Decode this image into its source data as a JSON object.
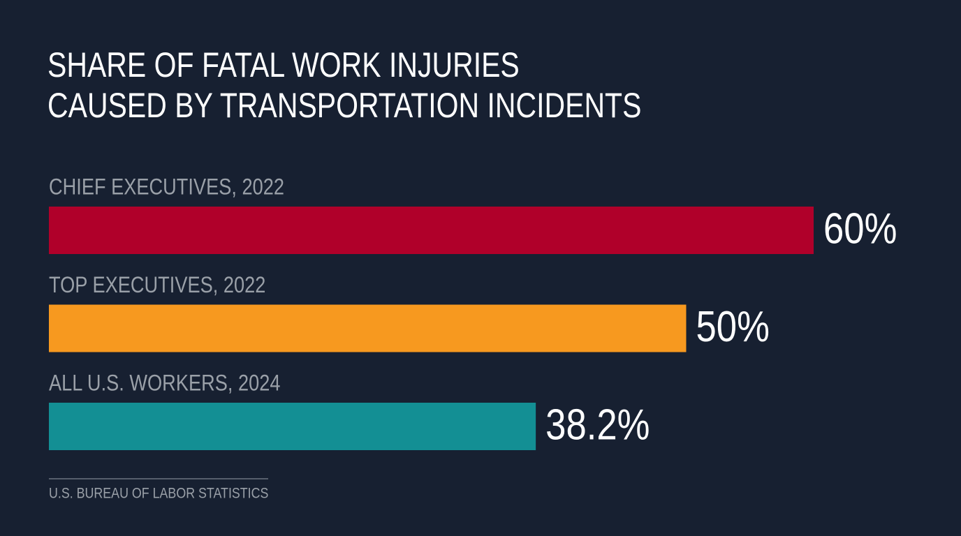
{
  "chart_data": {
    "type": "bar",
    "orientation": "horizontal",
    "title": [
      "SHARE OF FATAL WORK INJURIES",
      "CAUSED BY TRANSPORTATION INCIDENTS"
    ],
    "categories": [
      "CHIEF EXECUTIVES, 2022",
      "TOP EXECUTIVES, 2022",
      "ALL U.S. WORKERS, 2024"
    ],
    "values": [
      60,
      50,
      38.2
    ],
    "value_labels": [
      "60%",
      "50%",
      "38.2%"
    ],
    "colors": [
      "#b0002a",
      "#f7991f",
      "#138f94"
    ],
    "source": "U.S. BUREAU OF LABOR STATISTICS"
  }
}
